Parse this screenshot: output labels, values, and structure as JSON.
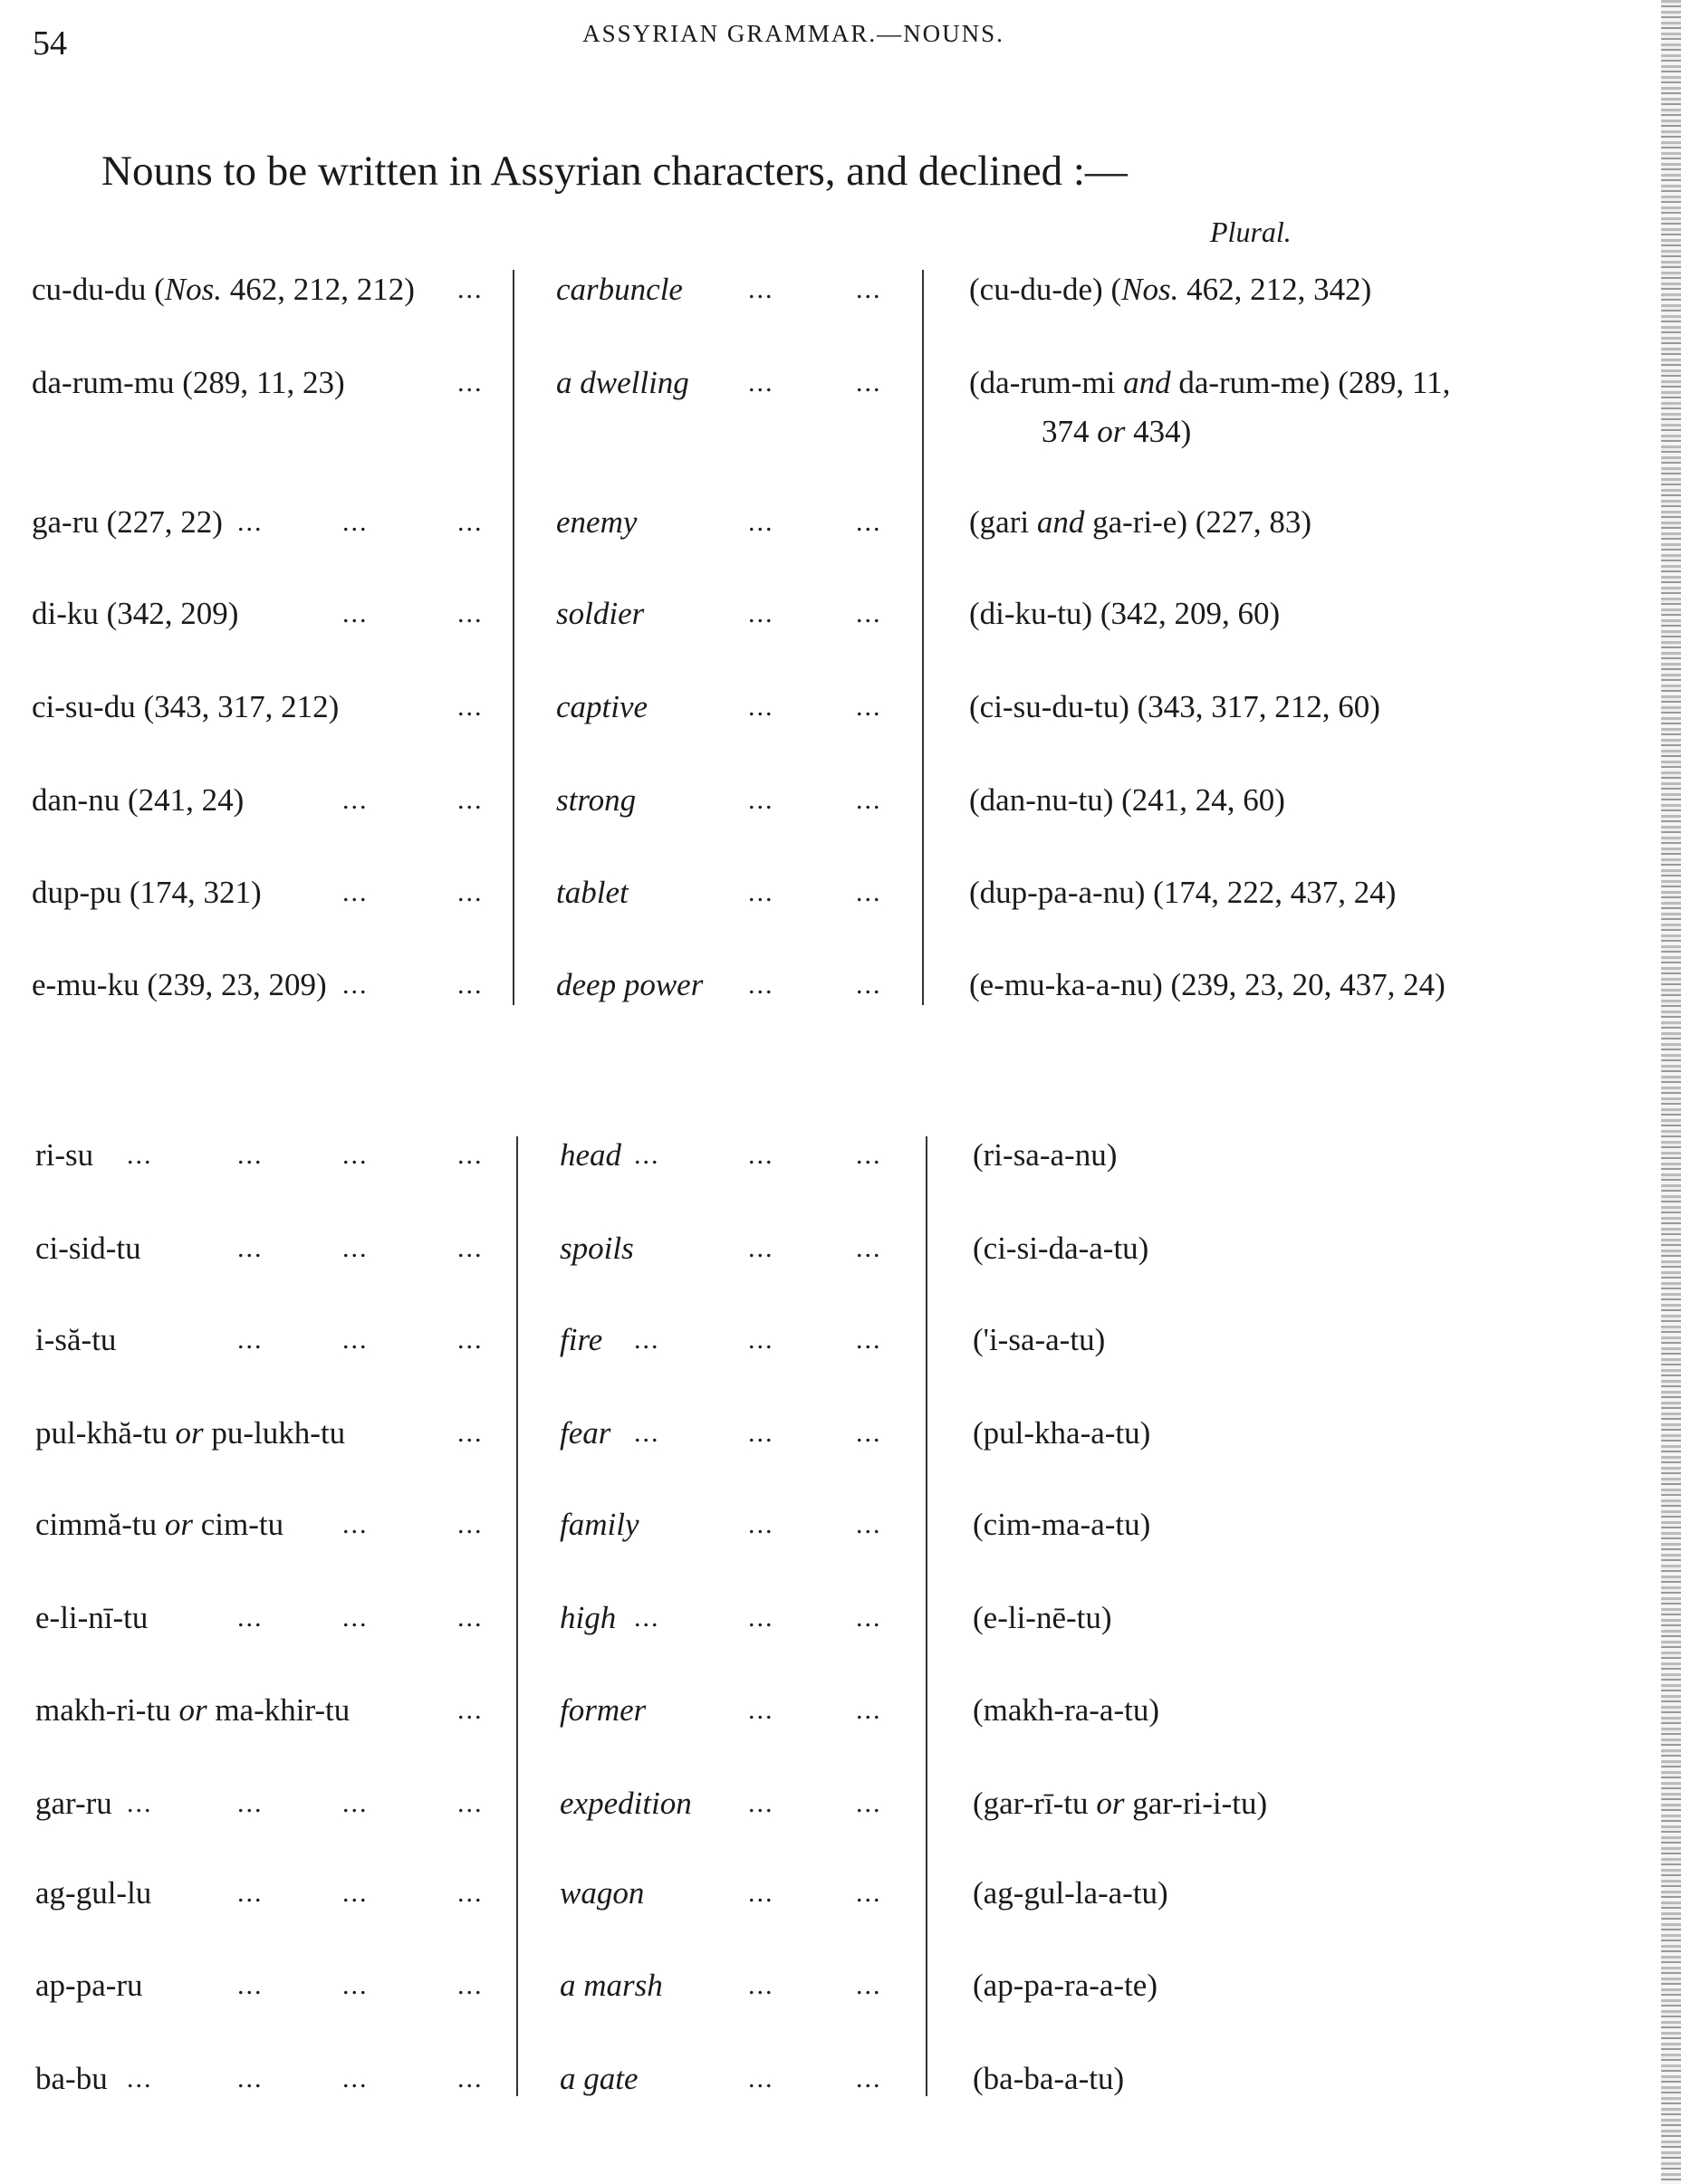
{
  "page": {
    "number": "54",
    "running_header": "ASSYRIAN GRAMMAR.—NOUNS.",
    "title": "Nouns to be written in Assyrian characters, and declined :—",
    "plural_heading": "Plural.",
    "leader": "..."
  },
  "groups": [
    {
      "rows": [
        {
          "singular": [
            [
              "cu-du-du (",
              0
            ],
            [
              "Nos.",
              1
            ],
            [
              " 462, 212, 212)",
              0
            ]
          ],
          "meaning": [
            [
              "carbuncle",
              1
            ]
          ],
          "plural": [
            [
              "(cu-du-de) (",
              0
            ],
            [
              "Nos.",
              1
            ],
            [
              " 462, 212, 342)",
              0
            ]
          ]
        },
        {
          "singular": [
            [
              "da-rum-mu (289, 11, 23)",
              0
            ]
          ],
          "meaning": [
            [
              "a dwelling",
              1
            ]
          ],
          "plural": [
            [
              "(da-rum-mi ",
              0
            ],
            [
              "and",
              1
            ],
            [
              " da-rum-me) (289, 11,",
              0
            ]
          ],
          "plural_cont": [
            [
              "374 ",
              0
            ],
            [
              "or",
              1
            ],
            [
              " 434)",
              0
            ]
          ]
        },
        {
          "singular": [
            [
              "ga-ru (227, 22)",
              0
            ]
          ],
          "meaning": [
            [
              "enemy",
              1
            ]
          ],
          "plural": [
            [
              "(gari ",
              0
            ],
            [
              "and",
              1
            ],
            [
              " ga-ri-e) (227, 83)",
              0
            ]
          ]
        },
        {
          "singular": [
            [
              "di-ku (342, 209)",
              0
            ]
          ],
          "meaning": [
            [
              "soldier",
              1
            ]
          ],
          "plural": [
            [
              "(di-ku-tu) (342, 209, 60)",
              0
            ]
          ]
        },
        {
          "singular": [
            [
              "ci-su-du (343, 317, 212)",
              0
            ]
          ],
          "meaning": [
            [
              "captive",
              1
            ]
          ],
          "plural": [
            [
              "(ci-su-du-tu) (343, 317, 212, 60)",
              0
            ]
          ]
        },
        {
          "singular": [
            [
              "dan-nu (241, 24)",
              0
            ]
          ],
          "meaning": [
            [
              "strong",
              1
            ]
          ],
          "plural": [
            [
              "(dan-nu-tu) (241, 24, 60)",
              0
            ]
          ]
        },
        {
          "singular": [
            [
              "dup-pu (174, 321)",
              0
            ]
          ],
          "meaning": [
            [
              "tablet",
              1
            ]
          ],
          "plural": [
            [
              "(dup-pa-a-nu) (174, 222, 437, 24)",
              0
            ]
          ]
        },
        {
          "singular": [
            [
              "e-mu-ku (239, 23, 209)",
              0
            ]
          ],
          "meaning": [
            [
              "deep power",
              1
            ]
          ],
          "plural": [
            [
              "(e-mu-ka-a-nu) (239, 23, 20, 437, 24)",
              0
            ]
          ]
        }
      ]
    },
    {
      "rows": [
        {
          "singular": [
            [
              "ri-su",
              0
            ]
          ],
          "meaning": [
            [
              "head",
              1
            ]
          ],
          "plural": [
            [
              "(ri-sa-a-nu)",
              0
            ]
          ]
        },
        {
          "singular": [
            [
              "ci-sid-tu",
              0
            ]
          ],
          "meaning": [
            [
              "spoils",
              1
            ]
          ],
          "plural": [
            [
              "(ci-si-da-a-tu)",
              0
            ]
          ]
        },
        {
          "singular": [
            [
              "i-să-tu",
              0
            ]
          ],
          "meaning": [
            [
              "fire",
              1
            ]
          ],
          "plural": [
            [
              "('i-sa-a-tu)",
              0
            ]
          ]
        },
        {
          "singular": [
            [
              "pul-khă-tu ",
              0
            ],
            [
              "or",
              1
            ],
            [
              " pu-lukh-tu",
              0
            ]
          ],
          "meaning": [
            [
              "fear",
              1
            ]
          ],
          "plural": [
            [
              "(pul-kha-a-tu)",
              0
            ]
          ]
        },
        {
          "singular": [
            [
              "cimmă-tu ",
              0
            ],
            [
              "or",
              1
            ],
            [
              " cim-tu",
              0
            ]
          ],
          "meaning": [
            [
              "family",
              1
            ]
          ],
          "plural": [
            [
              "(cim-ma-a-tu)",
              0
            ]
          ]
        },
        {
          "singular": [
            [
              "e-li-nī-tu",
              0
            ]
          ],
          "meaning": [
            [
              "high",
              1
            ]
          ],
          "plural": [
            [
              "(e-li-nē-tu)",
              0
            ]
          ]
        },
        {
          "singular": [
            [
              "makh-ri-tu ",
              0
            ],
            [
              "or",
              1
            ],
            [
              " ma-khir-tu",
              0
            ]
          ],
          "meaning": [
            [
              "former",
              1
            ]
          ],
          "plural": [
            [
              "(makh-ra-a-tu)",
              0
            ]
          ]
        },
        {
          "singular": [
            [
              "gar-ru",
              0
            ]
          ],
          "meaning": [
            [
              "expedition",
              1
            ]
          ],
          "plural": [
            [
              "(gar-rī-tu ",
              0
            ],
            [
              "or",
              1
            ],
            [
              " gar-ri-i-tu)",
              0
            ]
          ]
        },
        {
          "singular": [
            [
              "ag-gul-lu",
              0
            ]
          ],
          "meaning": [
            [
              "wagon",
              1
            ]
          ],
          "plural": [
            [
              "(ag-gul-la-a-tu)",
              0
            ]
          ]
        },
        {
          "singular": [
            [
              "ap-pa-ru",
              0
            ]
          ],
          "meaning": [
            [
              "a marsh",
              1
            ]
          ],
          "plural": [
            [
              "(ap-pa-ra-a-te)",
              0
            ]
          ]
        },
        {
          "singular": [
            [
              "ba-bu",
              0
            ]
          ],
          "meaning": [
            [
              "a gate",
              1
            ]
          ],
          "plural": [
            [
              "(ba-ba-a-tu)",
              0
            ]
          ]
        }
      ]
    }
  ]
}
